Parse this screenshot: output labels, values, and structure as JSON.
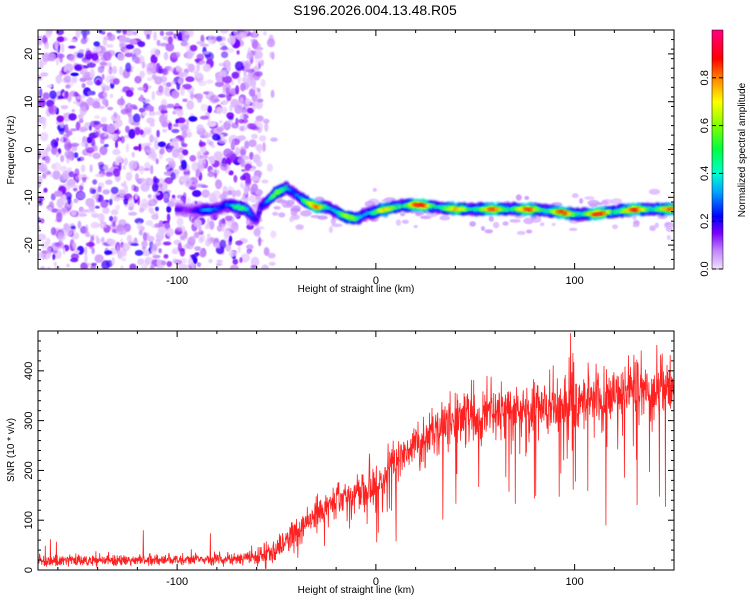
{
  "title": "S196.2026.004.13.48.R05",
  "chart_data": [
    {
      "type": "heatmap",
      "xlabel": "Height of straight line (km)",
      "ylabel": "Frequency (Hz)",
      "xlim": [
        -170,
        150
      ],
      "ylim": [
        -25,
        25
      ],
      "x_ticks": [
        -100,
        0,
        100
      ],
      "y_ticks": [
        20,
        10,
        0,
        -10,
        -20
      ],
      "x_tick_labels": [
        "-100",
        "0",
        "100"
      ],
      "y_tick_labels": [
        "20",
        "10",
        "0",
        "-10",
        "-20"
      ],
      "colorbar": {
        "label": "Normalized spectral amplitude",
        "range": [
          0,
          1
        ],
        "ticks": [
          0.0,
          0.2,
          0.4,
          0.6,
          0.8
        ],
        "tick_labels": [
          "0.0",
          "0.2",
          "0.4",
          "0.6",
          "0.8"
        ],
        "colors": [
          "#f2e0ff",
          "#c080ff",
          "#7b00ff",
          "#0000ff",
          "#00c8ff",
          "#00ff80",
          "#80ff00",
          "#ffff00",
          "#ff8000",
          "#ff0000",
          "#ff0080"
        ]
      },
      "noise_region_x": [
        -170,
        -58
      ],
      "signal_track": {
        "x": [
          -100,
          -90,
          -80,
          -75,
          -70,
          -65,
          -62,
          -60,
          -58,
          -55,
          -50,
          -45,
          -40,
          -35,
          -30,
          -25,
          -20,
          -15,
          -10,
          -5,
          0,
          10,
          20,
          30,
          40,
          60,
          80,
          90,
          100,
          110,
          120,
          130,
          150
        ],
        "freq": [
          -12.5,
          -12.8,
          -12.5,
          -11.5,
          -12,
          -12.5,
          -14,
          -15,
          -12,
          -11,
          -9,
          -8,
          -9.5,
          -11,
          -12,
          -12,
          -13,
          -14,
          -14.5,
          -13.5,
          -13,
          -12,
          -11.5,
          -12,
          -12.5,
          -12.5,
          -12.5,
          -13,
          -13.5,
          -13.5,
          -13,
          -12.5,
          -12.5
        ],
        "amplitude": [
          0.3,
          0.35,
          0.45,
          0.6,
          0.55,
          0.5,
          0.45,
          0.45,
          0.5,
          0.55,
          0.6,
          0.55,
          0.6,
          0.7,
          0.85,
          0.8,
          0.7,
          0.65,
          0.6,
          0.7,
          0.7,
          0.75,
          0.95,
          0.8,
          0.75,
          0.85,
          0.85,
          0.85,
          0.8,
          0.9,
          0.85,
          0.85,
          0.8
        ]
      }
    },
    {
      "type": "line",
      "xlabel": "Height of straight line (km)",
      "ylabel": "SNR (10 * v/v)",
      "xlim": [
        -170,
        150
      ],
      "ylim": [
        0,
        480
      ],
      "x_ticks": [
        -100,
        0,
        100
      ],
      "y_ticks": [
        0,
        100,
        200,
        300,
        400
      ],
      "x_tick_labels": [
        "-100",
        "0",
        "100"
      ],
      "y_tick_labels": [
        "0",
        "100",
        "200",
        "300",
        "400"
      ],
      "series": [
        {
          "name": "SNR",
          "color": "#ff2020",
          "trend_x": [
            -170,
            -120,
            -80,
            -60,
            -50,
            -40,
            -30,
            -20,
            -10,
            0,
            10,
            20,
            30,
            40,
            50,
            60,
            70,
            80,
            90,
            100,
            110,
            120,
            130,
            140,
            150
          ],
          "trend_y": [
            20,
            20,
            22,
            25,
            40,
            80,
            110,
            140,
            150,
            180,
            215,
            250,
            280,
            300,
            305,
            310,
            315,
            320,
            325,
            330,
            340,
            355,
            360,
            365,
            370
          ]
        }
      ]
    }
  ]
}
